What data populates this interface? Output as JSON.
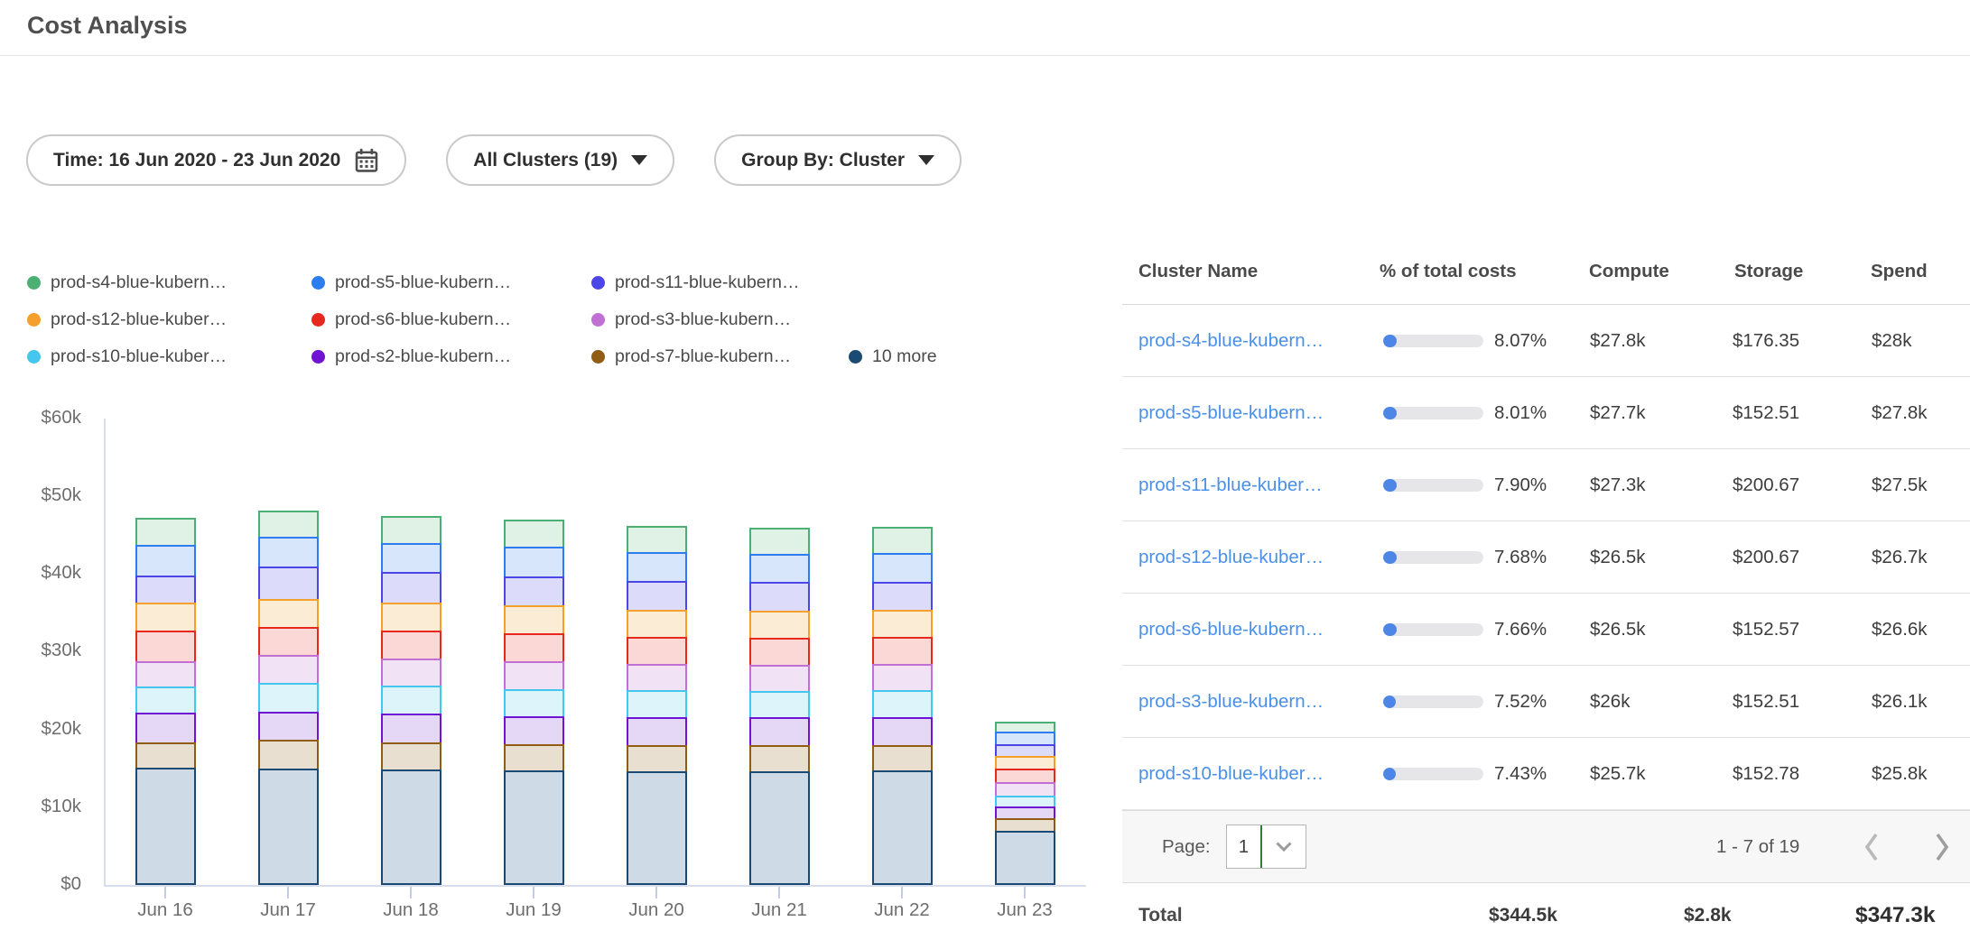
{
  "page_title": "Cost Analysis",
  "filters": {
    "time": {
      "label": "Time: 16 Jun 2020 - 23 Jun 2020",
      "icon": "calendar-icon"
    },
    "clusters": {
      "label": "All Clusters (19)"
    },
    "group_by": {
      "label": "Group By: Cluster"
    }
  },
  "legend": [
    {
      "label": "prod-s4-blue-kubern…",
      "color": "#4CAF73"
    },
    {
      "label": "prod-s5-blue-kubern…",
      "color": "#2E7DF0"
    },
    {
      "label": "prod-s11-blue-kubern…",
      "color": "#4C46E6"
    },
    {
      "label": "prod-s12-blue-kuber…",
      "color": "#F5A02C"
    },
    {
      "label": "prod-s6-blue-kubern…",
      "color": "#E8271E"
    },
    {
      "label": "prod-s3-blue-kubern…",
      "color": "#C06FD2"
    },
    {
      "label": "prod-s10-blue-kuber…",
      "color": "#45C6EC"
    },
    {
      "label": "prod-s2-blue-kubern…",
      "color": "#6E14D2"
    },
    {
      "label": "prod-s7-blue-kubern…",
      "color": "#8F5E14"
    },
    {
      "label": "10 more",
      "color": "#1B4A72"
    }
  ],
  "chart_data": {
    "type": "bar",
    "subtype": "stacked-vertical",
    "title": "",
    "xlabel": "",
    "ylabel": "",
    "x": [
      "Jun 16",
      "Jun 17",
      "Jun 18",
      "Jun 19",
      "Jun 20",
      "Jun 21",
      "Jun 22",
      "Jun 23"
    ],
    "y_ticks": [
      "$0",
      "$10k",
      "$20k",
      "$30k",
      "$40k",
      "$50k",
      "$60k"
    ],
    "ylim": [
      0,
      60000
    ],
    "values_unit": "USD thousands per day",
    "grid": false,
    "legend_position": "top",
    "stack_order": "bottom-to-top",
    "series": [
      {
        "name": "10 more",
        "color": "#1B4A72",
        "fill": "#CEDAE5",
        "values": [
          14.8,
          14.7,
          14.6,
          14.5,
          14.4,
          14.4,
          14.5,
          6.7
        ]
      },
      {
        "name": "prod-s7-blue-kubern…",
        "color": "#8F5E14",
        "fill": "#E8DFD0",
        "values": [
          3.3,
          3.7,
          3.5,
          3.4,
          3.4,
          3.3,
          3.3,
          1.6
        ]
      },
      {
        "name": "prod-s2-blue-kubern…",
        "color": "#6E14D2",
        "fill": "#E5D7F6",
        "values": [
          3.8,
          3.6,
          3.7,
          3.6,
          3.5,
          3.6,
          3.6,
          1.6
        ]
      },
      {
        "name": "prod-s10-blue-kuber…",
        "color": "#45C6EC",
        "fill": "#DDF4FB",
        "values": [
          3.4,
          3.7,
          3.6,
          3.5,
          3.5,
          3.4,
          3.4,
          1.4
        ]
      },
      {
        "name": "prod-s3-blue-kubern…",
        "color": "#C06FD2",
        "fill": "#F2E2F6",
        "values": [
          3.3,
          3.7,
          3.5,
          3.5,
          3.4,
          3.4,
          3.4,
          1.7
        ]
      },
      {
        "name": "prod-s6-blue-kubern…",
        "color": "#E8271E",
        "fill": "#FBD8D6",
        "values": [
          3.9,
          3.5,
          3.6,
          3.6,
          3.5,
          3.5,
          3.5,
          1.7
        ]
      },
      {
        "name": "prod-s12-blue-kuber…",
        "color": "#F5A02C",
        "fill": "#FBECD5",
        "values": [
          3.6,
          3.7,
          3.6,
          3.6,
          3.5,
          3.5,
          3.5,
          1.7
        ]
      },
      {
        "name": "prod-s11-blue-kubern…",
        "color": "#4C46E6",
        "fill": "#DCDBFA",
        "values": [
          3.5,
          4.1,
          3.9,
          3.8,
          3.7,
          3.6,
          3.6,
          1.5
        ]
      },
      {
        "name": "prod-s5-blue-kubern…",
        "color": "#2E7DF0",
        "fill": "#D8E6FC",
        "values": [
          3.9,
          3.8,
          3.8,
          3.8,
          3.7,
          3.7,
          3.7,
          1.6
        ]
      },
      {
        "name": "prod-s4-blue-kubern…",
        "color": "#4CAF73",
        "fill": "#E0F1E6",
        "values": [
          3.7,
          3.7,
          3.7,
          3.7,
          3.6,
          3.6,
          3.6,
          1.5
        ]
      }
    ]
  },
  "table": {
    "columns": [
      "Cluster Name",
      "% of total costs",
      "Compute",
      "Storage",
      "Spend"
    ],
    "rows": [
      {
        "name": "prod-s4-blue-kubern…",
        "pct": "8.07%",
        "pct_value": 8.07,
        "compute": "$27.8k",
        "storage": "$176.35",
        "spend": "$28k"
      },
      {
        "name": "prod-s5-blue-kubern…",
        "pct": "8.01%",
        "pct_value": 8.01,
        "compute": "$27.7k",
        "storage": "$152.51",
        "spend": "$27.8k"
      },
      {
        "name": "prod-s11-blue-kuber…",
        "pct": "7.90%",
        "pct_value": 7.9,
        "compute": "$27.3k",
        "storage": "$200.67",
        "spend": "$27.5k"
      },
      {
        "name": "prod-s12-blue-kuber…",
        "pct": "7.68%",
        "pct_value": 7.68,
        "compute": "$26.5k",
        "storage": "$200.67",
        "spend": "$26.7k"
      },
      {
        "name": "prod-s6-blue-kubern…",
        "pct": "7.66%",
        "pct_value": 7.66,
        "compute": "$26.5k",
        "storage": "$152.57",
        "spend": "$26.6k"
      },
      {
        "name": "prod-s3-blue-kubern…",
        "pct": "7.52%",
        "pct_value": 7.52,
        "compute": "$26k",
        "storage": "$152.51",
        "spend": "$26.1k"
      },
      {
        "name": "prod-s10-blue-kuber…",
        "pct": "7.43%",
        "pct_value": 7.43,
        "compute": "$25.7k",
        "storage": "$152.78",
        "spend": "$25.8k"
      }
    ],
    "pagination": {
      "label": "Page:",
      "page": "1",
      "range": "1 - 7 of 19"
    },
    "total": {
      "label": "Total",
      "compute": "$344.5k",
      "storage": "$2.8k",
      "spend": "$347.3k"
    }
  },
  "colors": {
    "link_blue": "#4A90E8",
    "progress_fill": "#4E86E8",
    "progress_track": "#E6E6E8",
    "axis_line": "#D6DEEE",
    "select_divider_green": "#2F7D31"
  }
}
